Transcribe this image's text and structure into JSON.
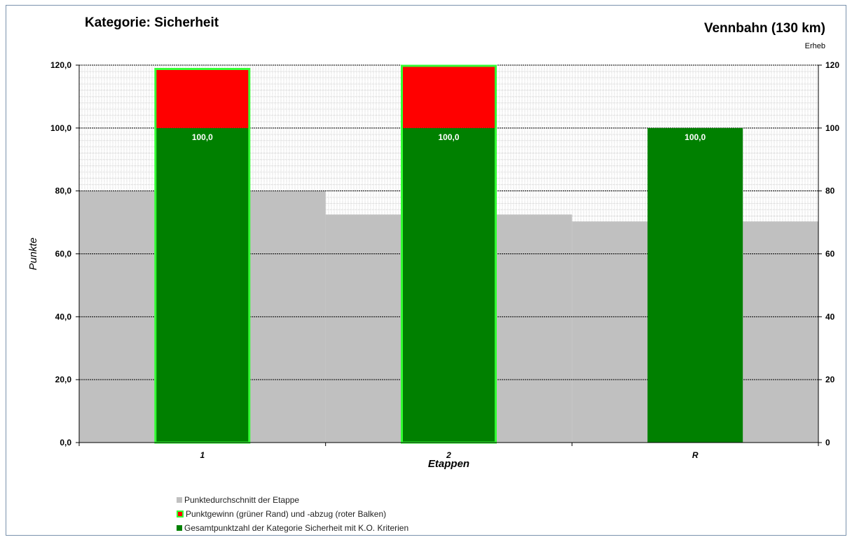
{
  "header": {
    "title": "Kategorie: Sicherheit",
    "subtitle": "Vennbahn (130 km)",
    "note": "Erheb"
  },
  "colors": {
    "average": "#c0c0c0",
    "deduction": "#ff0000",
    "gain_border": "#33ff33",
    "total": "#008000"
  },
  "chart_data": {
    "type": "bar",
    "title": "Kategorie: Sicherheit",
    "xlabel": "Etappen",
    "ylabel": "Punkte",
    "categories": [
      "1",
      "2",
      "R"
    ],
    "ylim": [
      0,
      120
    ],
    "y_ticks_left": [
      "0,0",
      "20,0",
      "40,0",
      "60,0",
      "80,0",
      "100,0",
      "120,0"
    ],
    "y_ticks_right": [
      "0",
      "20",
      "40",
      "60",
      "80",
      "100",
      "120"
    ],
    "grid": true,
    "legend_position": "bottom-left",
    "series": [
      {
        "name": "Punktedurchschnitt der Etappe",
        "values": [
          80,
          72.5,
          70.3
        ]
      },
      {
        "name": "Punktgewinn (grüner Rand) und -abzug (roter Balken)",
        "values": [
          19,
          20,
          0
        ]
      },
      {
        "name": "Gesamtpunktzahl der Kategorie Sicherheit mit K.O. Kriterien",
        "values": [
          100,
          100,
          100
        ]
      }
    ],
    "data_labels": [
      "100,0",
      "100,0",
      "100,0"
    ]
  },
  "legend": {
    "items": [
      "Punktedurchschnitt der Etappe",
      "Punktgewinn (grüner Rand) und -abzug (roter Balken)",
      "Gesamtpunktzahl der Kategorie Sicherheit mit K.O. Kriterien"
    ]
  }
}
